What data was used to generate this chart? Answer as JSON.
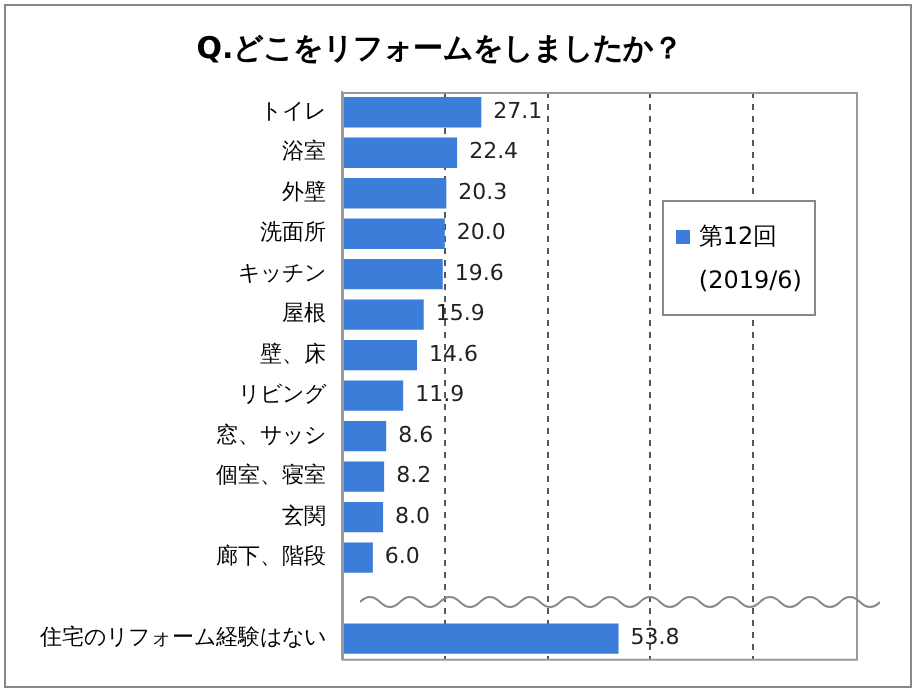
{
  "chart_data": {
    "type": "bar",
    "orientation": "horizontal",
    "title": "Q.どこをリフォームをしましたか？",
    "categories": [
      "トイレ",
      "浴室",
      "外壁",
      "洗面所",
      "キッチン",
      "屋根",
      "壁、床",
      "リビング",
      "窓、サッシ",
      "個室、寝室",
      "玄関",
      "廊下、階段",
      null,
      "住宅のリフォーム経験はない"
    ],
    "series": [
      {
        "name": "第12回",
        "color": "#3c7dd9",
        "values": [
          27.1,
          22.4,
          20.3,
          20.0,
          19.6,
          15.9,
          14.6,
          11.9,
          8.6,
          8.2,
          8.0,
          6.0,
          null,
          53.8
        ],
        "value_labels": [
          "27.1",
          "22.4",
          "20.3",
          "20.0",
          "19.6",
          "15.9",
          "14.6",
          "11.9",
          "8.6",
          "8.2",
          "8.0",
          "6.0",
          null,
          "53.8"
        ]
      }
    ],
    "legend_title": "(2019/6)",
    "xlim": [
      0,
      100
    ],
    "xticks": [
      {
        "value": 20,
        "label": null
      },
      {
        "value": 40,
        "label": null
      },
      {
        "value": 60,
        "label": null
      },
      {
        "value": 80,
        "label": null
      }
    ],
    "grid": "x",
    "legend": "right"
  }
}
